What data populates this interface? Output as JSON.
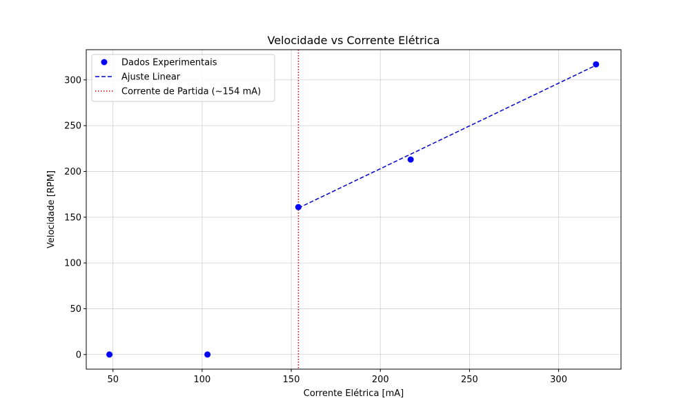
{
  "chart_data": {
    "type": "scatter",
    "title": "Velocidade vs Corrente Elétrica",
    "xlabel": "Corrente Elétrica [mA]",
    "ylabel": "Velocidade [RPM]",
    "xlim": [
      35,
      335
    ],
    "ylim": [
      -16,
      333
    ],
    "xticks": [
      50,
      100,
      150,
      200,
      250,
      300
    ],
    "yticks": [
      0,
      50,
      100,
      150,
      200,
      250,
      300
    ],
    "grid": true,
    "legend_position": "top-left",
    "series": [
      {
        "name": "Dados Experimentais",
        "kind": "scatter",
        "color": "#0000ff",
        "x": [
          48,
          103,
          154,
          217,
          321
        ],
        "y": [
          0,
          0,
          161,
          213,
          317
        ]
      },
      {
        "name": "Ajuste Linear",
        "kind": "line",
        "style": "dashed",
        "color": "#0000cc",
        "x": [
          154,
          321
        ],
        "y": [
          160,
          316
        ]
      },
      {
        "name": "Corrente de Partida (~154 mA)",
        "kind": "vline",
        "style": "dotted",
        "color": "#cc0000",
        "x": [
          154
        ]
      }
    ]
  }
}
